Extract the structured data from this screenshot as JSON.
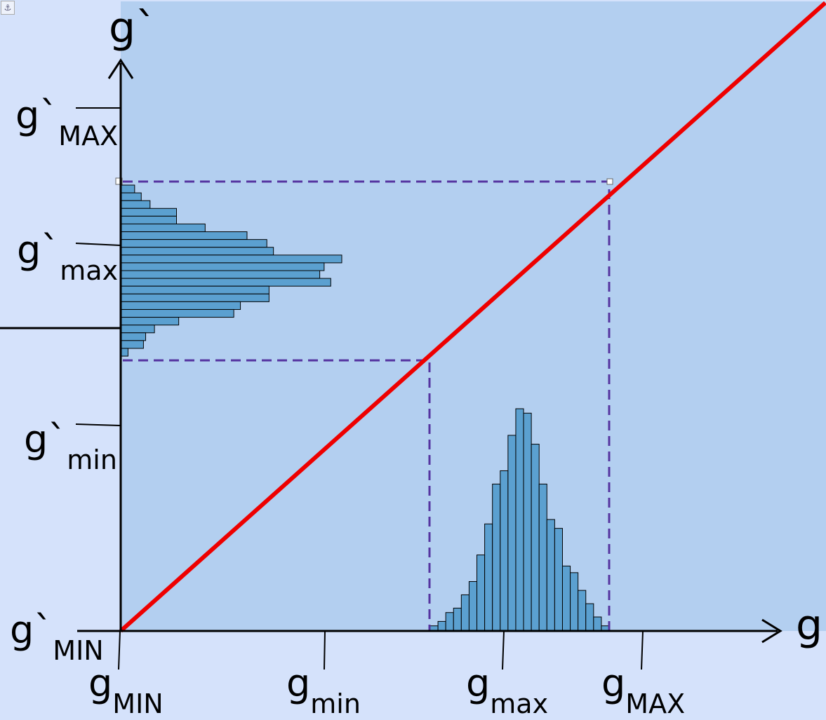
{
  "labels": {
    "y_axis": "g`",
    "x_axis": "g",
    "y_max_base": "g`",
    "y_max_sub": "MAX",
    "y_hmax_base": "g`",
    "y_hmax_sub": "max",
    "y_hmin_base": "g`",
    "y_hmin_sub": "min",
    "y_min_base": "g`",
    "y_min_sub": "MIN",
    "x_min_base": "g",
    "x_min_sub": "MIN",
    "x_hmin_base": "g",
    "x_hmin_sub": "min",
    "x_hmax_base": "g",
    "x_hmax_sub": "max",
    "x_max_base": "g",
    "x_max_sub": "MAX"
  },
  "anchor_icon": "⚓",
  "colors": {
    "background": "#d5e2fb",
    "plot_area": "#b3cff0",
    "mapping_line": "#ee0000",
    "guide_lines": "#5534a0",
    "histogram_fill": "#5ba0d0"
  },
  "histograms": {
    "input_g": [
      2,
      4,
      8,
      10,
      16,
      22,
      34,
      48,
      66,
      72,
      88,
      100,
      98,
      84,
      66,
      50,
      46,
      29,
      26,
      18,
      12,
      6,
      2
    ],
    "output_g_prime": [
      6,
      9,
      13,
      25,
      25,
      38,
      57,
      66,
      69,
      100,
      92,
      90,
      95,
      67,
      67,
      54,
      51,
      26,
      15,
      11,
      10,
      3
    ]
  }
}
